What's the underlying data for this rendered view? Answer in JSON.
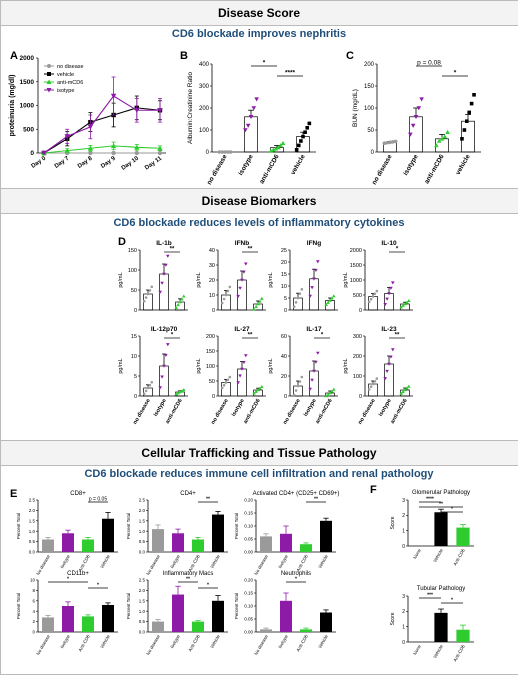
{
  "sections": {
    "s1_title": "Disease Score",
    "s1_sub": "CD6 blockade improves nephritis",
    "s2_title": "Disease Biomarkers",
    "s2_sub": "CD6 blockade reduces levels of inflammatory cytokines",
    "s3_title": "Cellular Trafficking and Tissue Pathology",
    "s3_sub": "CD6 blockade reduces immune cell infiltration and renal pathology"
  },
  "panel_letters": {
    "A": "A",
    "B": "B",
    "C": "C",
    "D": "D",
    "E": "E",
    "F": "F"
  },
  "colors": {
    "gray": "#9a9a9a",
    "black": "#000000",
    "green": "#2ecc2e",
    "purple": "#8e1aa8",
    "title_blue": "#1f4e79"
  },
  "chart_data": [
    {
      "id": "A",
      "type": "line",
      "title": "",
      "xlabel": "",
      "ylabel": "proteinuria (mg/dl)",
      "categories": [
        "Day 0",
        "Day 7",
        "Day 8",
        "Day 9",
        "Day 10",
        "Day 11"
      ],
      "ylim": [
        0,
        2000
      ],
      "yticks": [
        "0",
        "500",
        "1000",
        "1500",
        "2000"
      ],
      "series": [
        {
          "name": "no disease",
          "color": "gray",
          "marker": "circle",
          "values": [
            0,
            0,
            0,
            0,
            0,
            0
          ],
          "err": [
            0,
            0,
            0,
            0,
            0,
            0
          ]
        },
        {
          "name": "vehicle",
          "color": "black",
          "marker": "square",
          "values": [
            0,
            300,
            650,
            800,
            950,
            900
          ],
          "err": [
            0,
            150,
            200,
            250,
            250,
            200
          ]
        },
        {
          "name": "anti-mCD6",
          "color": "green",
          "marker": "triangle",
          "values": [
            0,
            50,
            100,
            150,
            120,
            100
          ],
          "err": [
            0,
            40,
            60,
            80,
            60,
            50
          ]
        },
        {
          "name": "isotype",
          "color": "purple",
          "marker": "triangle-down",
          "values": [
            0,
            350,
            550,
            1200,
            900,
            900
          ],
          "err": [
            0,
            150,
            250,
            400,
            250,
            250
          ]
        }
      ]
    },
    {
      "id": "B",
      "type": "bar",
      "ylabel": "Albumin:Creatinine Ratio",
      "categories": [
        "no disease",
        "isotype",
        "anti-mCD6",
        "vehicle"
      ],
      "ylim": [
        0,
        400
      ],
      "yticks": [
        "0",
        "100",
        "200",
        "300",
        "400"
      ],
      "values": [
        0,
        160,
        20,
        70
      ],
      "err": [
        0,
        30,
        10,
        20
      ],
      "colors": [
        "gray",
        "purple",
        "green",
        "black"
      ],
      "points": [
        [
          0,
          0,
          0,
          0,
          0
        ],
        [
          100,
          120,
          160,
          200,
          240
        ],
        [
          5,
          10,
          15,
          20,
          30,
          40
        ],
        [
          10,
          30,
          50,
          70,
          90,
          110,
          130
        ]
      ],
      "sig": [
        {
          "from": 1,
          "to": 2,
          "label": "*"
        },
        {
          "from": 2,
          "to": 3,
          "label": "****"
        }
      ]
    },
    {
      "id": "C",
      "type": "bar",
      "ylabel": "BUN (mg/dL)",
      "categories": [
        "no disease",
        "isotype",
        "anti-mCD6",
        "vehicle"
      ],
      "ylim": [
        0,
        200
      ],
      "yticks": [
        "0",
        "50",
        "100",
        "150",
        "200"
      ],
      "values": [
        22,
        80,
        30,
        70
      ],
      "err": [
        2,
        20,
        10,
        15
      ],
      "colors": [
        "gray",
        "purple",
        "green",
        "black"
      ],
      "points": [
        [
          20,
          21,
          22,
          23,
          24
        ],
        [
          40,
          60,
          80,
          100,
          120
        ],
        [
          15,
          25,
          30,
          35,
          45
        ],
        [
          30,
          50,
          70,
          90,
          110,
          130
        ]
      ],
      "sig": [
        {
          "from": 1,
          "to": 2,
          "label": "p = 0.08"
        },
        {
          "from": 2,
          "to": 3,
          "label": "*"
        }
      ]
    },
    {
      "id": "D",
      "type": "bar",
      "ylabel": "pg/mL",
      "categories": [
        "no disease",
        "isotype",
        "anti-mCD6"
      ],
      "colors": [
        "gray",
        "purple",
        "green"
      ],
      "panels": [
        {
          "title": "IL-1b",
          "ylim": [
            0,
            150
          ],
          "yticks": [
            "0",
            "50",
            "100",
            "150"
          ],
          "values": [
            40,
            90,
            20
          ],
          "err": [
            10,
            25,
            8
          ],
          "sig": [
            {
              "from": 1,
              "to": 2,
              "label": "**"
            }
          ]
        },
        {
          "title": "IFNb",
          "ylim": [
            0,
            40
          ],
          "yticks": [
            "0",
            "10",
            "20",
            "30",
            "40"
          ],
          "values": [
            10,
            20,
            4
          ],
          "err": [
            3,
            6,
            2
          ],
          "sig": [
            {
              "from": 1,
              "to": 2,
              "label": "**"
            }
          ]
        },
        {
          "title": "IFNg",
          "ylim": [
            0,
            25
          ],
          "yticks": [
            "0",
            "5",
            "10",
            "15",
            "20",
            "25"
          ],
          "values": [
            5,
            13,
            4
          ],
          "err": [
            2,
            4,
            1
          ],
          "sig": []
        },
        {
          "title": "IL-10",
          "ylim": [
            0,
            2000
          ],
          "yticks": [
            "0",
            "500",
            "1000",
            "1500",
            "2000"
          ],
          "values": [
            450,
            550,
            200
          ],
          "err": [
            100,
            200,
            60
          ],
          "sig": [
            {
              "from": 1,
              "to": 2,
              "label": "*"
            }
          ]
        },
        {
          "title": "IL-12p70",
          "ylim": [
            0,
            15
          ],
          "yticks": [
            "0",
            "5",
            "10",
            "15"
          ],
          "values": [
            2,
            7.5,
            1
          ],
          "err": [
            0.8,
            3,
            0.3
          ],
          "sig": [
            {
              "from": 1,
              "to": 2,
              "label": "*"
            }
          ]
        },
        {
          "title": "IL-27",
          "ylim": [
            0,
            200
          ],
          "yticks": [
            "0",
            "50",
            "100",
            "150",
            "200"
          ],
          "values": [
            45,
            90,
            20
          ],
          "err": [
            10,
            25,
            6
          ],
          "sig": [
            {
              "from": 1,
              "to": 2,
              "label": "**"
            }
          ]
        },
        {
          "title": "IL-17",
          "ylim": [
            0,
            60
          ],
          "yticks": [
            "0",
            "20",
            "40",
            "60"
          ],
          "values": [
            10,
            25,
            3
          ],
          "err": [
            5,
            10,
            2
          ],
          "sig": [
            {
              "from": 1,
              "to": 2,
              "label": "*"
            }
          ]
        },
        {
          "title": "IL-23",
          "ylim": [
            0,
            300
          ],
          "yticks": [
            "0",
            "100",
            "200",
            "300"
          ],
          "values": [
            60,
            160,
            30
          ],
          "err": [
            15,
            40,
            10
          ],
          "sig": [
            {
              "from": 1,
              "to": 2,
              "label": "**"
            }
          ]
        }
      ]
    },
    {
      "id": "E",
      "type": "bar",
      "ylabel": "Percent Total",
      "categories": [
        "No disease",
        "Isotype",
        "Anti-CD6",
        "Vehicle"
      ],
      "colors": [
        "gray",
        "purple",
        "green",
        "black"
      ],
      "panels": [
        {
          "title": "CD8+",
          "ylim": [
            0,
            2.5
          ],
          "yticks": [
            "0.0",
            "0.5",
            "1.0",
            "1.5",
            "2.0",
            "2.5"
          ],
          "values": [
            0.6,
            0.9,
            0.6,
            1.6
          ],
          "err": [
            0.1,
            0.15,
            0.1,
            0.3
          ],
          "sig": [
            {
              "from": 2,
              "to": 3,
              "label": "p = 0.05"
            }
          ]
        },
        {
          "title": "CD4+",
          "ylim": [
            0,
            2.5
          ],
          "yticks": [
            "0.0",
            "0.5",
            "1.0",
            "1.5",
            "2.0",
            "2.5"
          ],
          "values": [
            1.1,
            0.9,
            0.6,
            1.8
          ],
          "err": [
            0.2,
            0.2,
            0.1,
            0.15
          ],
          "sig": [
            {
              "from": 2,
              "to": 3,
              "label": "**"
            }
          ]
        },
        {
          "title": "Activated CD4+ (CD25+ CD69+)",
          "ylim": [
            0,
            0.2
          ],
          "yticks": [
            "0.00",
            "0.05",
            "0.10",
            "0.15",
            "0.20"
          ],
          "values": [
            0.06,
            0.07,
            0.03,
            0.12
          ],
          "err": [
            0.01,
            0.03,
            0.005,
            0.01
          ],
          "sig": [
            {
              "from": 2,
              "to": 3,
              "label": "**"
            }
          ]
        },
        {
          "title": "CD11b+",
          "ylim": [
            0,
            10
          ],
          "yticks": [
            "0",
            "2",
            "4",
            "6",
            "8",
            "10"
          ],
          "values": [
            2.8,
            5.0,
            3.0,
            5.2
          ],
          "err": [
            0.4,
            0.8,
            0.3,
            0.4
          ],
          "sig": [
            {
              "from": 0,
              "to": 2,
              "label": "*"
            },
            {
              "from": 2,
              "to": 3,
              "label": "*"
            }
          ]
        },
        {
          "title": "Inflammatory Macs",
          "ylim": [
            0,
            2.5
          ],
          "yticks": [
            "0.0",
            "0.5",
            "1.0",
            "1.5",
            "2.0",
            "2.5"
          ],
          "values": [
            0.5,
            1.8,
            0.5,
            1.5
          ],
          "err": [
            0.1,
            0.4,
            0.05,
            0.25
          ],
          "sig": [
            {
              "from": 1,
              "to": 2,
              "label": "**"
            },
            {
              "from": 2,
              "to": 3,
              "label": "*"
            }
          ]
        },
        {
          "title": "Neutrophils",
          "ylim": [
            0,
            0.2
          ],
          "yticks": [
            "0.00",
            "0.05",
            "0.10",
            "0.15",
            "0.20"
          ],
          "values": [
            0.01,
            0.12,
            0.01,
            0.075
          ],
          "err": [
            0.005,
            0.03,
            0.005,
            0.01
          ],
          "sig": [
            {
              "from": 1,
              "to": 2,
              "label": "*"
            }
          ]
        }
      ]
    },
    {
      "id": "F",
      "type": "bar",
      "ylabel": "Score",
      "categories": [
        "None",
        "Vehicle",
        "Anti-CD6"
      ],
      "colors": [
        "gray",
        "black",
        "green"
      ],
      "panels": [
        {
          "title": "Glomerular Pathology",
          "ylim": [
            0,
            3
          ],
          "yticks": [
            "0",
            "1",
            "2",
            "3"
          ],
          "values": [
            0,
            2.2,
            1.2
          ],
          "err": [
            0,
            0.2,
            0.2
          ],
          "sig": [
            {
              "from": 0,
              "to": 1,
              "label": "****"
            },
            {
              "from": 0,
              "to": 2,
              "label": "**"
            },
            {
              "from": 1,
              "to": 2,
              "label": "*"
            }
          ]
        },
        {
          "title": "Tubular Pathology",
          "ylim": [
            0,
            3
          ],
          "yticks": [
            "0",
            "1",
            "2",
            "3"
          ],
          "values": [
            0,
            1.9,
            0.8
          ],
          "err": [
            0,
            0.25,
            0.3
          ],
          "sig": [
            {
              "from": 0,
              "to": 1,
              "label": "***"
            },
            {
              "from": 1,
              "to": 2,
              "label": "*"
            }
          ]
        }
      ]
    }
  ]
}
